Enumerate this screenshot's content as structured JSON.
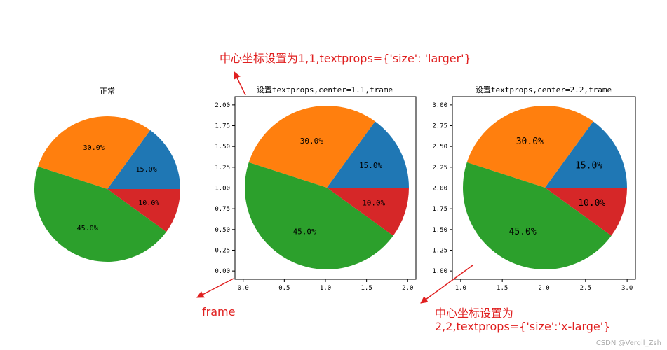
{
  "colors": {
    "blue": "#1f77b4",
    "orange": "#ff7f0e",
    "green": "#2ca02c",
    "red": "#d62728",
    "annotation": "#e02020"
  },
  "chart_data": [
    {
      "type": "pie",
      "title": "正常",
      "frame": false,
      "textsize": "normal",
      "slices": [
        {
          "value": 15,
          "label": "15.0%",
          "color": "#1f77b4"
        },
        {
          "value": 30,
          "label": "30.0%",
          "color": "#ff7f0e"
        },
        {
          "value": 45,
          "label": "45.0%",
          "color": "#2ca02c"
        },
        {
          "value": 10,
          "label": "10.0%",
          "color": "#d62728"
        }
      ]
    },
    {
      "type": "pie",
      "title": "设置textprops,center=1.1,frame",
      "frame": true,
      "center": [
        1,
        1
      ],
      "textsize": "larger",
      "xlim": [
        -0.1,
        2.1
      ],
      "ylim": [
        -0.1,
        2.1
      ],
      "xticks": [
        "0.0",
        "0.5",
        "1.0",
        "1.5",
        "2.0"
      ],
      "yticks": [
        "0.00",
        "0.25",
        "0.50",
        "0.75",
        "1.00",
        "1.25",
        "1.50",
        "1.75",
        "2.00"
      ],
      "slices": [
        {
          "value": 15,
          "label": "15.0%",
          "color": "#1f77b4"
        },
        {
          "value": 30,
          "label": "30.0%",
          "color": "#ff7f0e"
        },
        {
          "value": 45,
          "label": "45.0%",
          "color": "#2ca02c"
        },
        {
          "value": 10,
          "label": "10.0%",
          "color": "#d62728"
        }
      ]
    },
    {
      "type": "pie",
      "title": "设置textprops,center=2.2,frame",
      "frame": true,
      "center": [
        2,
        2
      ],
      "textsize": "x-large",
      "xlim": [
        0.9,
        3.1
      ],
      "ylim": [
        0.9,
        3.1
      ],
      "xticks": [
        "1.0",
        "1.5",
        "2.0",
        "2.5",
        "3.0"
      ],
      "yticks": [
        "1.00",
        "1.25",
        "1.50",
        "1.75",
        "2.00",
        "2.25",
        "2.50",
        "2.75",
        "3.00"
      ],
      "slices": [
        {
          "value": 15,
          "label": "15.0%",
          "color": "#1f77b4"
        },
        {
          "value": 30,
          "label": "30.0%",
          "color": "#ff7f0e"
        },
        {
          "value": 45,
          "label": "45.0%",
          "color": "#2ca02c"
        },
        {
          "value": 10,
          "label": "10.0%",
          "color": "#d62728"
        }
      ]
    }
  ],
  "annotations": {
    "top": "中心坐标设置为1,1,textprops={'size': 'larger'}",
    "frame": "frame",
    "bottom_line1": "中心坐标设置为",
    "bottom_line2": "2,2,textprops={'size':'x-large'}"
  },
  "watermark": "CSDN @Vergil_Zsh"
}
